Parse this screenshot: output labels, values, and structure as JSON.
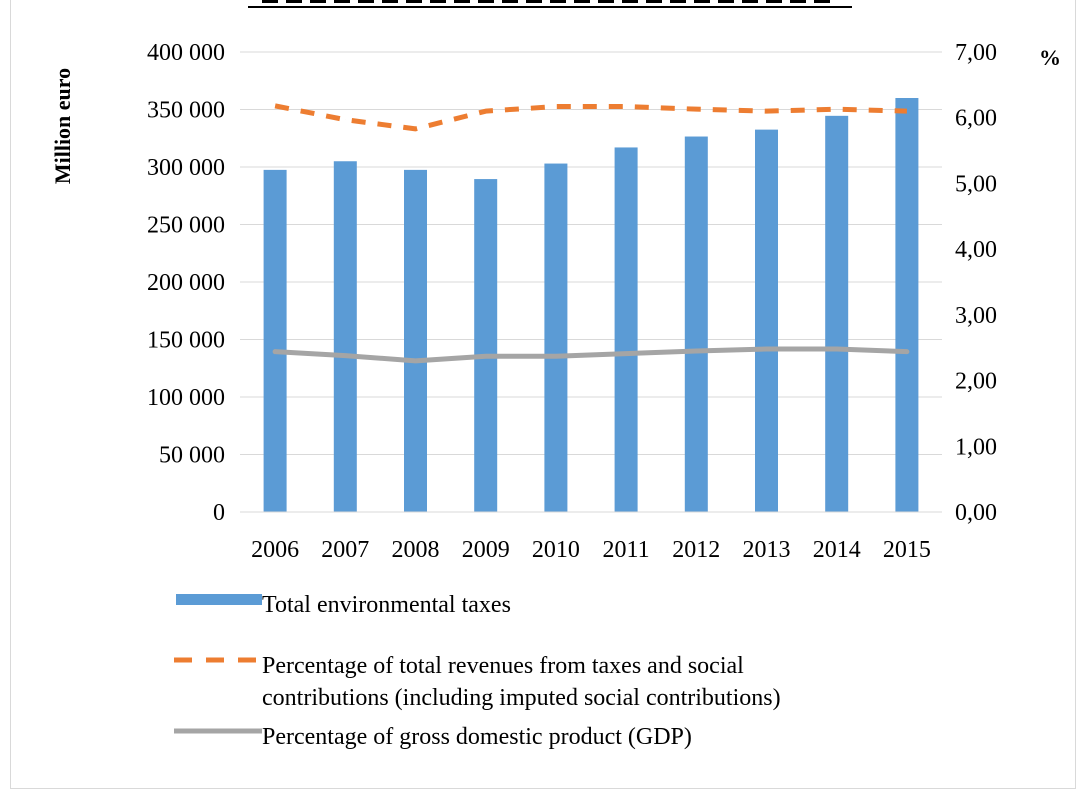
{
  "chart_data": {
    "type": "bar",
    "ylabel": "Million euro",
    "y2label": "%",
    "categories": [
      "2006",
      "2007",
      "2008",
      "2009",
      "2010",
      "2011",
      "2012",
      "2013",
      "2014",
      "2015"
    ],
    "ylim": [
      0,
      400000
    ],
    "y2lim": [
      0,
      7
    ],
    "y_ticks": [
      "0",
      "50 000",
      "100 000",
      "150 000",
      "200 000",
      "250 000",
      "300 000",
      "350 000",
      "400 000"
    ],
    "y2_ticks": [
      "0,00",
      "1,00",
      "2,00",
      "3,00",
      "4,00",
      "5,00",
      "6,00",
      "7,00"
    ],
    "grid": true,
    "legend_position": "bottom",
    "series": [
      {
        "name": "Total environmental taxes",
        "type": "bar",
        "axis": "left",
        "color": "#5b9bd5",
        "values": [
          297500,
          305000,
          297500,
          289500,
          303000,
          317000,
          326500,
          332500,
          344500,
          360000
        ]
      },
      {
        "name": "Percentage of total revenues from taxes and social contributions (including imputed social contributions)",
        "legend_lines": [
          "Percentage of total revenues from taxes and social",
          "contributions (including imputed social contributions)"
        ],
        "type": "line",
        "style": "dashed",
        "axis": "right",
        "color": "#ed7d31",
        "values": [
          6.18,
          5.97,
          5.83,
          6.1,
          6.17,
          6.17,
          6.13,
          6.1,
          6.13,
          6.1
        ]
      },
      {
        "name": "Percentage of gross domestic product (GDP)",
        "legend_lines": [
          "Percentage of gross domestic product (GDP)"
        ],
        "type": "line",
        "style": "solid",
        "axis": "right",
        "color": "#a5a5a5",
        "values": [
          2.44,
          2.38,
          2.3,
          2.37,
          2.37,
          2.41,
          2.45,
          2.48,
          2.48,
          2.44
        ]
      }
    ]
  }
}
